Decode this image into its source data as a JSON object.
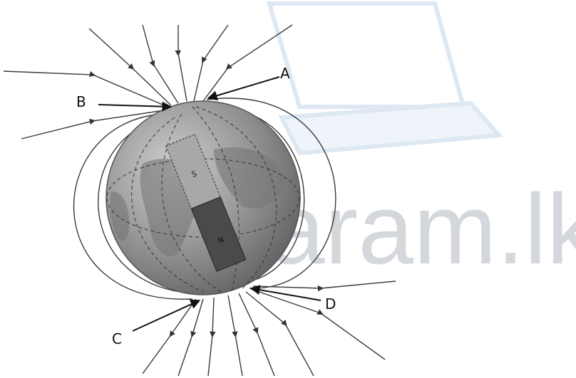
{
  "labels": {
    "A": "A",
    "B": "B",
    "C": "C",
    "D": "D"
  },
  "magnet": {
    "south": "S",
    "north": "N"
  },
  "watermark": "agaram.lk"
}
